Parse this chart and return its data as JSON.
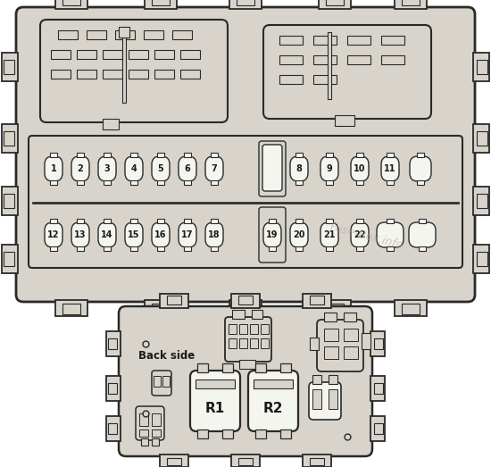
{
  "bg_color": "#d8d4cc",
  "outline_color": "#2a2a2a",
  "fill_color": "#d8d4cc",
  "white_fill": "#f5f5f0",
  "watermark": "Fuse-Box.info",
  "fuses_row1": [
    "1",
    "2",
    "3",
    "4",
    "5",
    "6",
    "7"
  ],
  "fuses_row2": [
    "12",
    "13",
    "14",
    "15",
    "16",
    "17",
    "18"
  ],
  "fuses_row3": [
    "8",
    "9",
    "10",
    "11"
  ],
  "fuses_row4": [
    "20",
    "21",
    "22"
  ],
  "fuse19": "19",
  "relay_labels": [
    "R1",
    "R2"
  ],
  "back_side_label": "Back side"
}
